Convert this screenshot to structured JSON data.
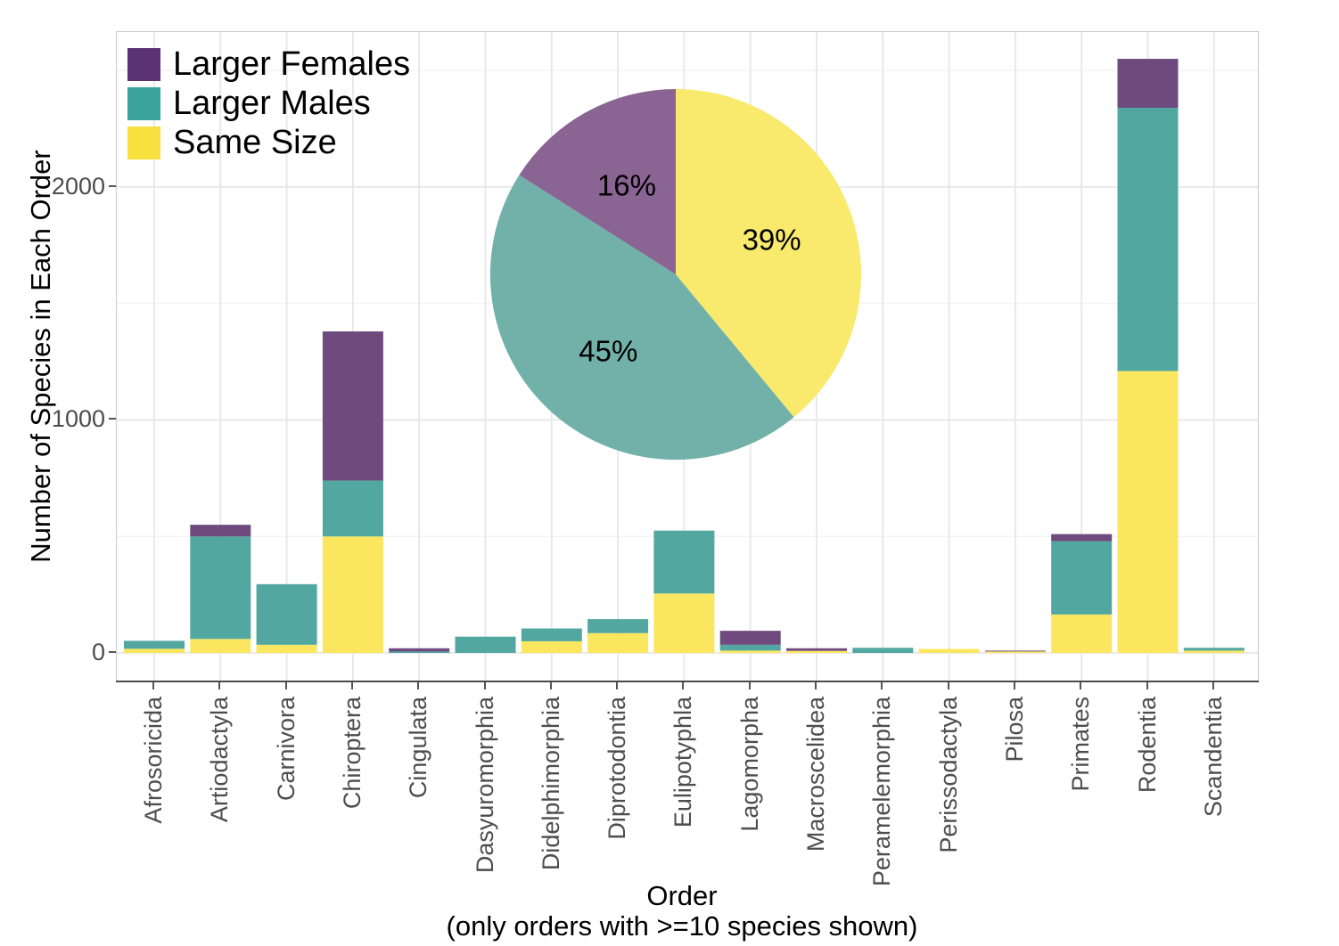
{
  "figure": {
    "y_axis_title": "Number of Species in Each Order",
    "x_axis_title": "Order",
    "x_axis_subtitle": "(only orders with >=10 species shown)"
  },
  "legend": {
    "items": [
      {
        "label": "Larger Females",
        "color_key": "larger_females"
      },
      {
        "label": "Larger Males",
        "color_key": "larger_males"
      },
      {
        "label": "Same Size",
        "color_key": "same_size"
      }
    ]
  },
  "colors": {
    "legend": {
      "larger_females": "#5b3375",
      "larger_males": "#3da49d",
      "same_size": "#f8e13e"
    },
    "bar": {
      "larger_females": "#6e4a7f",
      "larger_males": "#52a7a0",
      "same_size": "#fbe75f"
    },
    "pie": {
      "larger_females": "#8a6492",
      "larger_males": "#72b1a9",
      "same_size": "#f9ea6e"
    },
    "grid_major": "#e7e7e7",
    "grid_minor": "#f3f3f3",
    "panel_border": "#c9c9c9",
    "axis_text": "#4d4d4d",
    "title_text": "#000000"
  },
  "chart_data": [
    {
      "type": "bar",
      "stacked": true,
      "title": "",
      "xlabel": "Order (only orders with >=10 species shown)",
      "ylabel": "Number of Species in Each Order",
      "ylim": [
        0,
        2670
      ],
      "yticks": [
        0,
        1000,
        2000
      ],
      "grid": true,
      "categories": [
        "Afrosoricida",
        "Artiodactyla",
        "Carnivora",
        "Chiroptera",
        "Cingulata",
        "Dasyuromorphia",
        "Didelphimorphia",
        "Diprotodontia",
        "Eulipotyphla",
        "Lagomorpha",
        "Macroscelidea",
        "Peramelemorphia",
        "Perissodactyla",
        "Pilosa",
        "Primates",
        "Rodentia",
        "Scandentia"
      ],
      "series": [
        {
          "name": "Same Size",
          "key": "same_size",
          "values": [
            18,
            60,
            35,
            500,
            0,
            0,
            50,
            85,
            255,
            10,
            9,
            0,
            17,
            7,
            165,
            1210,
            10
          ]
        },
        {
          "name": "Larger Males",
          "key": "larger_males",
          "values": [
            34,
            440,
            260,
            240,
            6,
            70,
            55,
            60,
            270,
            25,
            0,
            22,
            0,
            0,
            315,
            1130,
            12
          ]
        },
        {
          "name": "Larger Females",
          "key": "larger_females",
          "values": [
            0,
            50,
            0,
            640,
            14,
            0,
            0,
            0,
            0,
            60,
            11,
            0,
            0,
            3,
            30,
            210,
            0
          ]
        }
      ],
      "legend_position": "top-left-inside"
    },
    {
      "type": "pie",
      "title": "",
      "start_angle_deg": 0,
      "direction": "clockwise",
      "slices": [
        {
          "label": "Same Size",
          "key": "same_size",
          "pct": 39,
          "text": "39%"
        },
        {
          "label": "Larger Males",
          "key": "larger_males",
          "pct": 45,
          "text": "45%"
        },
        {
          "label": "Larger Females",
          "key": "larger_females",
          "pct": 16,
          "text": "16%"
        }
      ]
    }
  ]
}
